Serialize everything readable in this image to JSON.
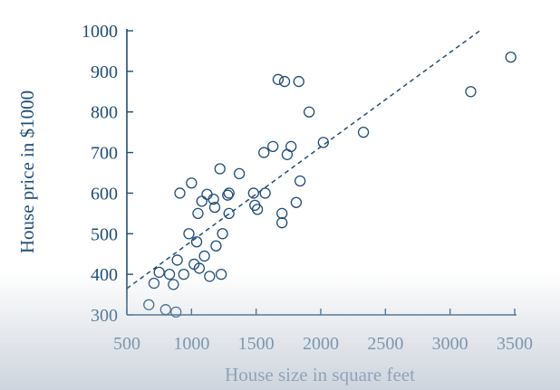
{
  "chart_data": {
    "type": "scatter",
    "title": "",
    "xlabel": "House size in square feet",
    "ylabel": "House price in $1000",
    "xlim": [
      500,
      3500
    ],
    "ylim": [
      300,
      1000
    ],
    "xticks": [
      500,
      1000,
      1500,
      2000,
      2500,
      3000,
      3500
    ],
    "yticks": [
      300,
      400,
      500,
      600,
      700,
      800,
      900,
      1000
    ],
    "grid": false,
    "colors": {
      "ink": "#1f4e79",
      "points": "#1f4e79",
      "fit": "#1f4e79"
    },
    "points": [
      {
        "x": 670,
        "y": 325
      },
      {
        "x": 710,
        "y": 378
      },
      {
        "x": 750,
        "y": 405
      },
      {
        "x": 800,
        "y": 313
      },
      {
        "x": 830,
        "y": 400
      },
      {
        "x": 860,
        "y": 375
      },
      {
        "x": 880,
        "y": 307
      },
      {
        "x": 890,
        "y": 435
      },
      {
        "x": 910,
        "y": 600
      },
      {
        "x": 940,
        "y": 400
      },
      {
        "x": 980,
        "y": 500
      },
      {
        "x": 1000,
        "y": 625
      },
      {
        "x": 1020,
        "y": 425
      },
      {
        "x": 1040,
        "y": 480
      },
      {
        "x": 1050,
        "y": 550
      },
      {
        "x": 1060,
        "y": 415
      },
      {
        "x": 1080,
        "y": 580
      },
      {
        "x": 1100,
        "y": 445
      },
      {
        "x": 1120,
        "y": 597
      },
      {
        "x": 1140,
        "y": 395
      },
      {
        "x": 1170,
        "y": 585
      },
      {
        "x": 1180,
        "y": 565
      },
      {
        "x": 1190,
        "y": 470
      },
      {
        "x": 1220,
        "y": 660
      },
      {
        "x": 1230,
        "y": 400
      },
      {
        "x": 1240,
        "y": 500
      },
      {
        "x": 1280,
        "y": 595
      },
      {
        "x": 1290,
        "y": 600
      },
      {
        "x": 1290,
        "y": 550
      },
      {
        "x": 1370,
        "y": 648
      },
      {
        "x": 1480,
        "y": 600
      },
      {
        "x": 1490,
        "y": 570
      },
      {
        "x": 1510,
        "y": 560
      },
      {
        "x": 1560,
        "y": 700
      },
      {
        "x": 1570,
        "y": 600
      },
      {
        "x": 1630,
        "y": 715
      },
      {
        "x": 1670,
        "y": 880
      },
      {
        "x": 1700,
        "y": 550
      },
      {
        "x": 1700,
        "y": 527
      },
      {
        "x": 1720,
        "y": 875
      },
      {
        "x": 1740,
        "y": 695
      },
      {
        "x": 1770,
        "y": 715
      },
      {
        "x": 1810,
        "y": 577
      },
      {
        "x": 1830,
        "y": 875
      },
      {
        "x": 1840,
        "y": 630
      },
      {
        "x": 1910,
        "y": 800
      },
      {
        "x": 2020,
        "y": 725
      },
      {
        "x": 2330,
        "y": 750
      },
      {
        "x": 3160,
        "y": 850
      },
      {
        "x": 3470,
        "y": 935
      }
    ],
    "fit_line": {
      "x": [
        500,
        3230
      ],
      "y": [
        365,
        1000
      ],
      "style": "dashed"
    }
  }
}
